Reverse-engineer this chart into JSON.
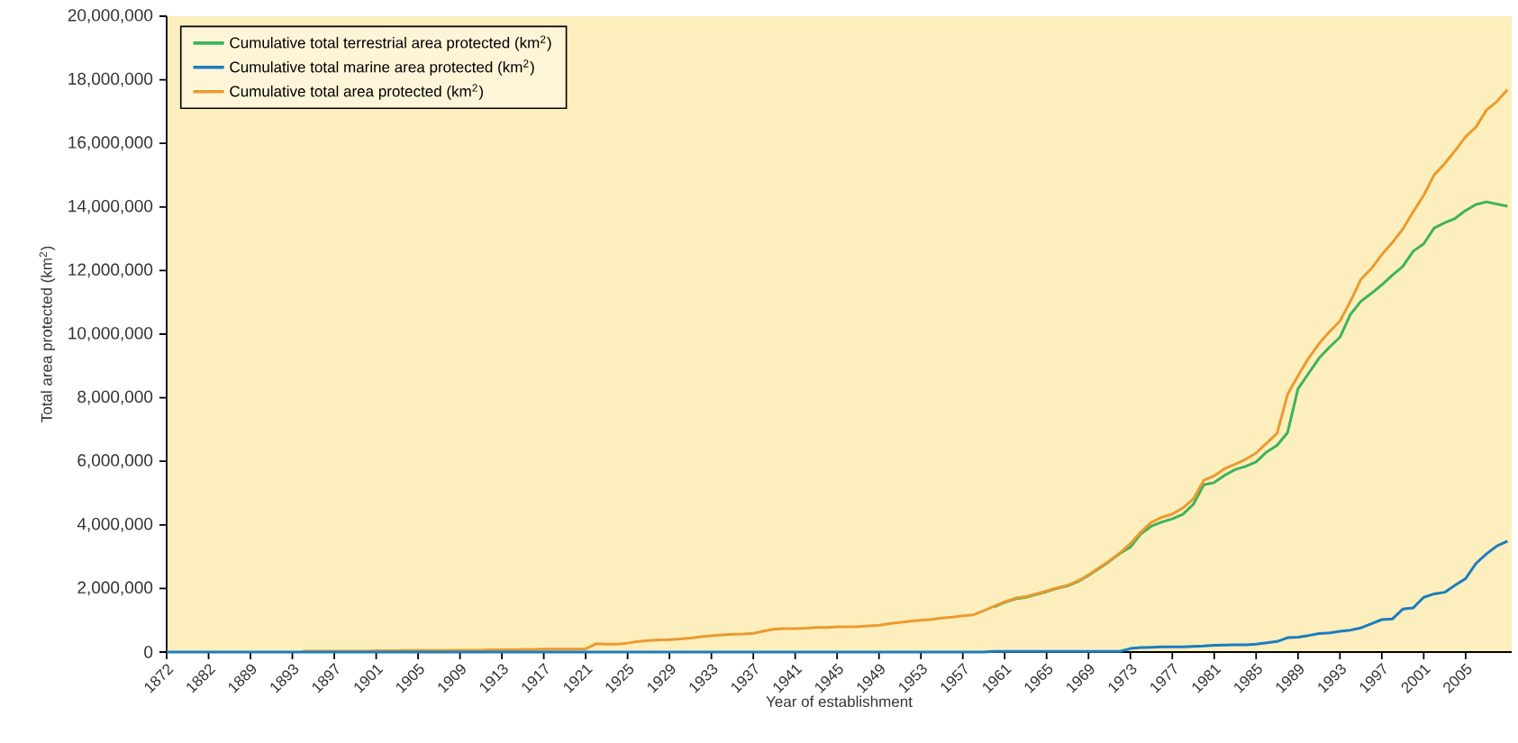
{
  "chart_data": {
    "type": "line",
    "xlabel": "Year of establishment",
    "ylabel": "Total area protected (km$^{2}$)",
    "categories": [
      "1872",
      null,
      null,
      null,
      "1882",
      null,
      null,
      null,
      "1889",
      null,
      null,
      null,
      "1893",
      null,
      null,
      null,
      "1897",
      null,
      null,
      null,
      "1901",
      null,
      null,
      null,
      "1905",
      null,
      null,
      null,
      "1909",
      null,
      null,
      null,
      "1913",
      null,
      null,
      null,
      "1917",
      null,
      null,
      null,
      "1921",
      null,
      null,
      null,
      "1925",
      null,
      null,
      null,
      "1929",
      null,
      null,
      null,
      "1933",
      null,
      null,
      null,
      "1937",
      null,
      null,
      null,
      "1941",
      null,
      null,
      null,
      "1945",
      null,
      null,
      null,
      "1949",
      null,
      null,
      null,
      "1953",
      null,
      null,
      null,
      "1957",
      null,
      null,
      null,
      "1961",
      null,
      null,
      null,
      "1965",
      null,
      null,
      null,
      "1969",
      null,
      null,
      null,
      "1973",
      null,
      null,
      null,
      "1977",
      null,
      null,
      null,
      "1981",
      null,
      null,
      null,
      "1985",
      null,
      null,
      null,
      "1989",
      null,
      null,
      null,
      "1993",
      null,
      null,
      null,
      "1997",
      null,
      null,
      null,
      "2001",
      null,
      null,
      null,
      "2005",
      null,
      null,
      null,
      null
    ],
    "ylim": [
      0,
      20000000
    ],
    "yticks": [
      {
        "value": 0,
        "label": "0"
      },
      {
        "value": 2000000,
        "label": "2,000,000"
      },
      {
        "value": 4000000,
        "label": "4,000,000"
      },
      {
        "value": 6000000,
        "label": "6,000,000"
      },
      {
        "value": 8000000,
        "label": "8,000,000"
      },
      {
        "value": 10000000,
        "label": "10,000,000"
      },
      {
        "value": 12000000,
        "label": "12,000,000"
      },
      {
        "value": 14000000,
        "label": "14,000,000"
      },
      {
        "value": 16000000,
        "label": "16,000,000"
      },
      {
        "value": 18000000,
        "label": "18,000,000"
      },
      {
        "value": 20000000,
        "label": "20,000,000"
      }
    ],
    "legend": "top left",
    "marker": "none",
    "line_style": "solid",
    "series": [
      {
        "name": "Cumulative total terrestrial area protected (km$^{2}$)",
        "color": "#3cb35a",
        "values": [
          null,
          null,
          null,
          null,
          null,
          null,
          null,
          null,
          null,
          null,
          null,
          null,
          null,
          null,
          null,
          null,
          null,
          null,
          null,
          null,
          null,
          null,
          null,
          null,
          null,
          null,
          null,
          null,
          null,
          null,
          null,
          null,
          null,
          null,
          null,
          null,
          null,
          null,
          null,
          null,
          null,
          null,
          null,
          null,
          null,
          null,
          null,
          null,
          null,
          null,
          null,
          null,
          null,
          null,
          null,
          null,
          null,
          null,
          null,
          null,
          null,
          null,
          null,
          null,
          null,
          null,
          null,
          null,
          null,
          null,
          null,
          null,
          null,
          null,
          null,
          null,
          null,
          null,
          null,
          1420000,
          1560000,
          1670000,
          1720000,
          1810000,
          1900000,
          2000000,
          2080000,
          2220000,
          2410000,
          2630000,
          2850000,
          3100000,
          3300000,
          3720000,
          3960000,
          4090000,
          4190000,
          4330000,
          4640000,
          5260000,
          5330000,
          5560000,
          5740000,
          5840000,
          5980000,
          6290000,
          6500000,
          6900000,
          8280000,
          8760000,
          9240000,
          9590000,
          9900000,
          10620000,
          11030000,
          11280000,
          11550000,
          11850000,
          12130000,
          12610000,
          12840000,
          13340000,
          13500000,
          13640000,
          13890000,
          14080000,
          14160000,
          14090000,
          14020000
        ]
      },
      {
        "name": "Cumulative total marine area protected (km$^{2}$)",
        "color": "#1b7dbf",
        "values": [
          0,
          0,
          0,
          0,
          0,
          0,
          0,
          0,
          0,
          0,
          0,
          0,
          0,
          0,
          0,
          0,
          0,
          0,
          0,
          0,
          0,
          0,
          0,
          0,
          0,
          0,
          0,
          0,
          0,
          0,
          0,
          0,
          0,
          0,
          0,
          0,
          0,
          0,
          0,
          0,
          0,
          0,
          0,
          0,
          0,
          0,
          0,
          0,
          0,
          0,
          0,
          0,
          0,
          0,
          0,
          0,
          0,
          0,
          0,
          0,
          0,
          0,
          0,
          0,
          0,
          0,
          0,
          0,
          0,
          0,
          0,
          0,
          0,
          0,
          0,
          0,
          0,
          0,
          0,
          20000,
          20000,
          20000,
          20000,
          20000,
          20000,
          20000,
          20000,
          20000,
          20000,
          20000,
          20000,
          20000,
          110000,
          140000,
          150000,
          160000,
          160000,
          160000,
          180000,
          190000,
          210000,
          220000,
          230000,
          230000,
          250000,
          290000,
          330000,
          450000,
          470000,
          520000,
          580000,
          600000,
          650000,
          690000,
          760000,
          890000,
          1020000,
          1040000,
          1350000,
          1390000,
          1720000,
          1830000,
          1880000,
          2100000,
          2310000,
          2790000,
          3090000,
          3340000,
          3490000
        ]
      },
      {
        "name": "Cumulative total area protected (km$^{2}$)",
        "color": "#eb9a2e",
        "values": [
          null,
          null,
          null,
          null,
          null,
          null,
          null,
          null,
          null,
          null,
          null,
          null,
          null,
          30000,
          30000,
          30000,
          30000,
          30000,
          30000,
          30000,
          40000,
          40000,
          40000,
          50000,
          50000,
          50000,
          50000,
          50000,
          60000,
          60000,
          60000,
          70000,
          70000,
          70000,
          80000,
          80000,
          90000,
          90000,
          90000,
          90000,
          100000,
          260000,
          250000,
          250000,
          280000,
          330000,
          360000,
          380000,
          390000,
          410000,
          440000,
          480000,
          510000,
          540000,
          560000,
          570000,
          590000,
          660000,
          720000,
          740000,
          740000,
          750000,
          770000,
          770000,
          790000,
          790000,
          800000,
          820000,
          840000,
          890000,
          930000,
          970000,
          1000000,
          1030000,
          1070000,
          1100000,
          1140000,
          1170000,
          1300000,
          1440000,
          1580000,
          1690000,
          1740000,
          1830000,
          1920000,
          2020000,
          2100000,
          2240000,
          2430000,
          2650000,
          2870000,
          3120000,
          3410000,
          3780000,
          4080000,
          4240000,
          4340000,
          4530000,
          4810000,
          5400000,
          5540000,
          5770000,
          5910000,
          6060000,
          6260000,
          6570000,
          6880000,
          8100000,
          8690000,
          9240000,
          9700000,
          10070000,
          10410000,
          11030000,
          11720000,
          12060000,
          12500000,
          12880000,
          13300000,
          13850000,
          14370000,
          15010000,
          15360000,
          15770000,
          16210000,
          16520000,
          17050000,
          17320000,
          17690000
        ]
      }
    ]
  }
}
